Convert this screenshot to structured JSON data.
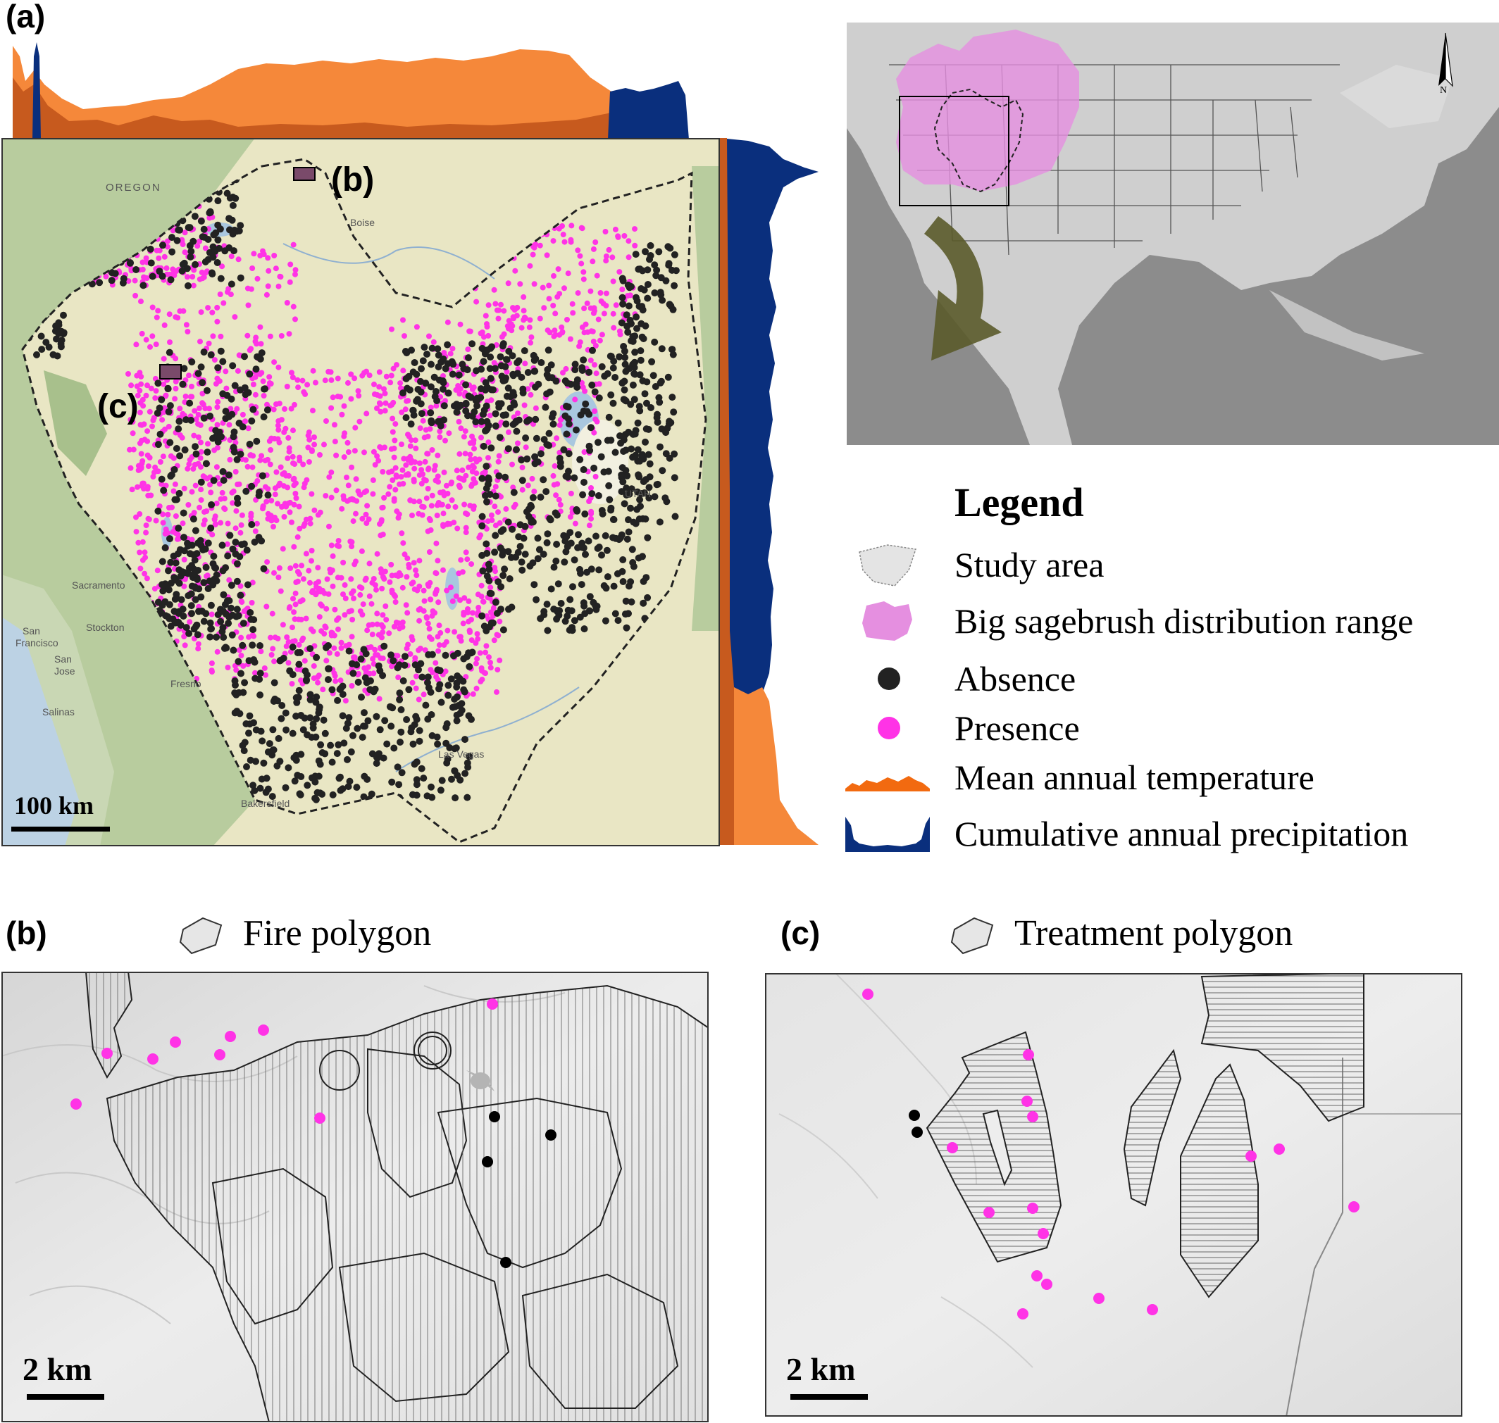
{
  "panel_a": {
    "label": "(a)",
    "inset_b_label": "(b)",
    "inset_c_label": "(c)",
    "scale_label": "100 km",
    "basemap_labels": {
      "oregon": "OREGON",
      "utah": "UTAH",
      "boise": "Boise",
      "sacramento": "Sacramento",
      "stockton": "Stockton",
      "san_francisco_1": "San",
      "san_francisco_2": "Francisco",
      "san_jose_1": "San",
      "san_jose_2": "Jose",
      "salinas": "Salinas",
      "fresno": "Fresno",
      "las_vegas": "Las Vegas",
      "bakersfield": "Bakersfield"
    },
    "colors": {
      "presence": "#ff33e6",
      "absence": "#222222",
      "temperature": "#f5883a",
      "temperature_dark": "#c75a1e",
      "precipitation": "#0a2f7d"
    }
  },
  "locator_map": {
    "north_label": "N",
    "colors": {
      "sagebrush_range": "#e58fe0",
      "arrow": "#5a5a2a"
    }
  },
  "legend": {
    "title": "Legend",
    "items": [
      {
        "label": "Study area",
        "icon": "study-area-polygon-icon"
      },
      {
        "label": "Big sagebrush distribution range",
        "icon": "sagebrush-range-icon"
      },
      {
        "label": "Absence",
        "icon": "black-dot-icon"
      },
      {
        "label": "Presence",
        "icon": "magenta-dot-icon"
      },
      {
        "label": "Mean annual temperature",
        "icon": "temperature-profile-icon"
      },
      {
        "label": "Cumulative annual precipitation",
        "icon": "precipitation-profile-icon"
      }
    ]
  },
  "panel_b": {
    "label": "(b)",
    "legend_label": "Fire polygon",
    "scale_label": "2 km"
  },
  "panel_c": {
    "label": "(c)",
    "legend_label": "Treatment polygon",
    "scale_label": "2 km"
  }
}
